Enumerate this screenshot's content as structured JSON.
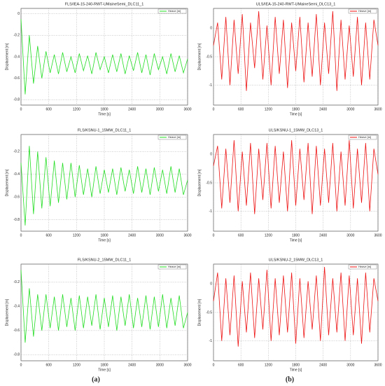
{
  "chart_data": [
    {
      "type": "line",
      "title": "FLS/IEA-15-240-RWT-UMaineSemi_DLC11_1",
      "x_label": "Time [s]",
      "y_label": "Displacement [m]",
      "x": [
        0,
        90,
        180,
        270,
        360,
        450,
        540,
        630,
        720,
        810,
        900,
        990,
        1080,
        1170,
        1260,
        1350,
        1440,
        1530,
        1620,
        1710,
        1800,
        1890,
        1980,
        2070,
        2160,
        2250,
        2340,
        2430,
        2520,
        2610,
        2700,
        2790,
        2880,
        2970,
        3060,
        3150,
        3240,
        3330,
        3420,
        3510,
        3600
      ],
      "series": [
        {
          "name": "Heave [m]",
          "color": "#22dd22",
          "values": [
            -0.05,
            -0.75,
            -0.2,
            -0.65,
            -0.3,
            -0.6,
            -0.35,
            -0.55,
            -0.38,
            -0.56,
            -0.36,
            -0.54,
            -0.4,
            -0.55,
            -0.37,
            -0.53,
            -0.39,
            -0.56,
            -0.36,
            -0.52,
            -0.4,
            -0.55,
            -0.38,
            -0.54,
            -0.37,
            -0.56,
            -0.39,
            -0.53,
            -0.36,
            -0.55,
            -0.38,
            -0.57,
            -0.37,
            -0.52,
            -0.4,
            -0.56,
            -0.37,
            -0.54,
            -0.39,
            -0.55,
            -0.42
          ]
        }
      ],
      "xlim": [
        0,
        3600
      ],
      "xticks": [
        0,
        600,
        1200,
        1800,
        2400,
        3000,
        3600
      ],
      "ylim": [
        -0.85,
        0.05
      ],
      "yticks": [
        -0.8,
        -0.6,
        -0.4,
        -0.2,
        0
      ],
      "grid": true
    },
    {
      "type": "line",
      "title": "ULS/IEA-15-240-RWT-UMaineSemi_DLC13_1",
      "x_label": "Time [s]",
      "y_label": "Displacement [m]",
      "x": [
        0,
        90,
        180,
        270,
        360,
        450,
        540,
        630,
        720,
        810,
        900,
        990,
        1080,
        1170,
        1260,
        1350,
        1440,
        1530,
        1620,
        1710,
        1800,
        1890,
        1980,
        2070,
        2160,
        2250,
        2340,
        2430,
        2520,
        2610,
        2700,
        2790,
        2880,
        2970,
        3060,
        3150,
        3240,
        3330,
        3420,
        3510,
        3600
      ],
      "series": [
        {
          "name": "Heave [m]",
          "color": "#ee1111",
          "values": [
            -0.3,
            0.1,
            -0.9,
            0.2,
            -1.0,
            0.15,
            -0.8,
            0.25,
            -1.1,
            0.1,
            -0.7,
            0.3,
            -0.9,
            0.05,
            -1.0,
            0.2,
            -0.8,
            0.15,
            -1.05,
            0.1,
            -0.75,
            0.2,
            -0.95,
            0.1,
            -0.85,
            0.25,
            -1.0,
            0.1,
            -0.8,
            0.3,
            -1.1,
            0.15,
            -0.9,
            0.05,
            -0.85,
            0.2,
            -1.0,
            0.1,
            -0.9,
            0.15,
            -0.3
          ]
        }
      ],
      "xlim": [
        0,
        3600
      ],
      "xticks": [
        0,
        600,
        1200,
        1800,
        2400,
        3000,
        3600
      ],
      "ylim": [
        -1.35,
        0.35
      ],
      "yticks": [
        -1,
        -0.5,
        0
      ],
      "grid": true
    },
    {
      "type": "line",
      "title": "FLS/KSNU-1_15MW_DLC11_1",
      "x_label": "Time [s]",
      "y_label": "Displacement [m]",
      "x": [
        0,
        90,
        180,
        270,
        360,
        450,
        540,
        630,
        720,
        810,
        900,
        990,
        1080,
        1170,
        1260,
        1350,
        1440,
        1530,
        1620,
        1710,
        1800,
        1890,
        1980,
        2070,
        2160,
        2250,
        2340,
        2430,
        2520,
        2610,
        2700,
        2790,
        2880,
        2970,
        3060,
        3150,
        3240,
        3330,
        3420,
        3510,
        3600
      ],
      "series": [
        {
          "name": "Heave [m]",
          "color": "#22dd22",
          "values": [
            -0.3,
            -0.85,
            -0.15,
            -0.75,
            -0.2,
            -0.7,
            -0.25,
            -0.68,
            -0.28,
            -0.65,
            -0.3,
            -0.62,
            -0.3,
            -0.6,
            -0.32,
            -0.58,
            -0.35,
            -0.6,
            -0.33,
            -0.57,
            -0.36,
            -0.56,
            -0.35,
            -0.58,
            -0.34,
            -0.55,
            -0.36,
            -0.57,
            -0.33,
            -0.56,
            -0.35,
            -0.58,
            -0.34,
            -0.55,
            -0.36,
            -0.57,
            -0.33,
            -0.56,
            -0.35,
            -0.58,
            -0.45
          ]
        }
      ],
      "xlim": [
        0,
        3600
      ],
      "xticks": [
        0,
        600,
        1200,
        1800,
        2400,
        3000,
        3600
      ],
      "ylim": [
        -0.9,
        -0.05
      ],
      "yticks": [
        -0.8,
        -0.6,
        -0.4,
        -0.2
      ],
      "grid": true
    },
    {
      "type": "line",
      "title": "ULS/KSNU-1_15MW_DLC13_1",
      "x_label": "Time [s]",
      "y_label": "Displacement [m]",
      "x": [
        0,
        90,
        180,
        270,
        360,
        450,
        540,
        630,
        720,
        810,
        900,
        990,
        1080,
        1170,
        1260,
        1350,
        1440,
        1530,
        1620,
        1710,
        1800,
        1890,
        1980,
        2070,
        2160,
        2250,
        2340,
        2430,
        2520,
        2610,
        2700,
        2790,
        2880,
        2970,
        3060,
        3150,
        3240,
        3330,
        3420,
        3510,
        3600
      ],
      "series": [
        {
          "name": "Heave [m]",
          "color": "#ee1111",
          "values": [
            -0.2,
            0.15,
            -0.95,
            0.1,
            -0.85,
            0.25,
            -1.0,
            0.05,
            -0.9,
            0.2,
            -1.05,
            0.1,
            -0.8,
            0.2,
            -0.95,
            0.15,
            -0.85,
            0.05,
            -1.0,
            0.25,
            -0.9,
            0.1,
            -0.8,
            0.2,
            -1.05,
            0.15,
            -0.9,
            0.1,
            -0.85,
            0.2,
            -1.0,
            0.05,
            -0.9,
            0.25,
            -0.95,
            0.1,
            -0.85,
            0.2,
            -1.0,
            0.1,
            -0.35
          ]
        }
      ],
      "xlim": [
        0,
        3600
      ],
      "xticks": [
        0,
        600,
        1200,
        1800,
        2400,
        3000,
        3600
      ],
      "ylim": [
        -1.35,
        0.35
      ],
      "yticks": [
        -1,
        -0.5,
        0
      ],
      "grid": true
    },
    {
      "type": "line",
      "title": "FLS/KSNU-2_15MW_DLC11_1",
      "x_label": "Time [s]",
      "y_label": "Displacement [m]",
      "x": [
        0,
        90,
        180,
        270,
        360,
        450,
        540,
        630,
        720,
        810,
        900,
        990,
        1080,
        1170,
        1260,
        1350,
        1440,
        1530,
        1620,
        1710,
        1800,
        1890,
        1980,
        2070,
        2160,
        2250,
        2340,
        2430,
        2520,
        2610,
        2700,
        2790,
        2880,
        2970,
        3060,
        3150,
        3240,
        3330,
        3420,
        3510,
        3600
      ],
      "series": [
        {
          "name": "Heave [m]",
          "color": "#22dd22",
          "values": [
            -0.1,
            -0.7,
            -0.25,
            -0.65,
            -0.3,
            -0.6,
            -0.3,
            -0.58,
            -0.32,
            -0.6,
            -0.3,
            -0.57,
            -0.33,
            -0.6,
            -0.31,
            -0.58,
            -0.32,
            -0.56,
            -0.3,
            -0.59,
            -0.33,
            -0.57,
            -0.31,
            -0.6,
            -0.32,
            -0.56,
            -0.3,
            -0.58,
            -0.33,
            -0.57,
            -0.31,
            -0.59,
            -0.32,
            -0.57,
            -0.3,
            -0.58,
            -0.33,
            -0.56,
            -0.31,
            -0.58,
            -0.45
          ]
        }
      ],
      "xlim": [
        0,
        3600
      ],
      "xticks": [
        0,
        600,
        1200,
        1800,
        2400,
        3000,
        3600
      ],
      "ylim": [
        -0.85,
        -0.05
      ],
      "yticks": [
        -0.8,
        -0.6,
        -0.4,
        -0.2
      ],
      "grid": true
    },
    {
      "type": "line",
      "title": "ULS/KSNU-2_15MW_DLC13_1",
      "x_label": "Time [s]",
      "y_label": "Displacement [m]",
      "x": [
        0,
        90,
        180,
        270,
        360,
        450,
        540,
        630,
        720,
        810,
        900,
        990,
        1080,
        1170,
        1260,
        1350,
        1440,
        1530,
        1620,
        1710,
        1800,
        1890,
        1980,
        2070,
        2160,
        2250,
        2340,
        2430,
        2520,
        2610,
        2700,
        2790,
        2880,
        2970,
        3060,
        3150,
        3240,
        3330,
        3420,
        3510,
        3600
      ],
      "series": [
        {
          "name": "Heave [m]",
          "color": "#ee1111",
          "values": [
            -0.3,
            0.2,
            -1.0,
            0.1,
            -0.9,
            0.15,
            -1.1,
            0.05,
            -0.85,
            0.2,
            -0.95,
            0.1,
            -0.8,
            0.25,
            -1.0,
            0.1,
            -0.9,
            0.15,
            -0.85,
            0.2,
            -1.05,
            0.1,
            -0.95,
            0.05,
            -0.8,
            0.15,
            -1.0,
            0.3,
            -0.9,
            0.1,
            -0.85,
            0.2,
            -1.0,
            0.15,
            -0.9,
            0.1,
            -1.05,
            0.2,
            -0.85,
            0.1,
            -0.3
          ]
        }
      ],
      "xlim": [
        0,
        3600
      ],
      "xticks": [
        0,
        600,
        1200,
        1800,
        2400,
        3000,
        3600
      ],
      "ylim": [
        -1.35,
        0.35
      ],
      "yticks": [
        -1,
        -0.5,
        0
      ],
      "grid": true
    }
  ],
  "panel_labels": [
    "(a)",
    "(b)"
  ]
}
